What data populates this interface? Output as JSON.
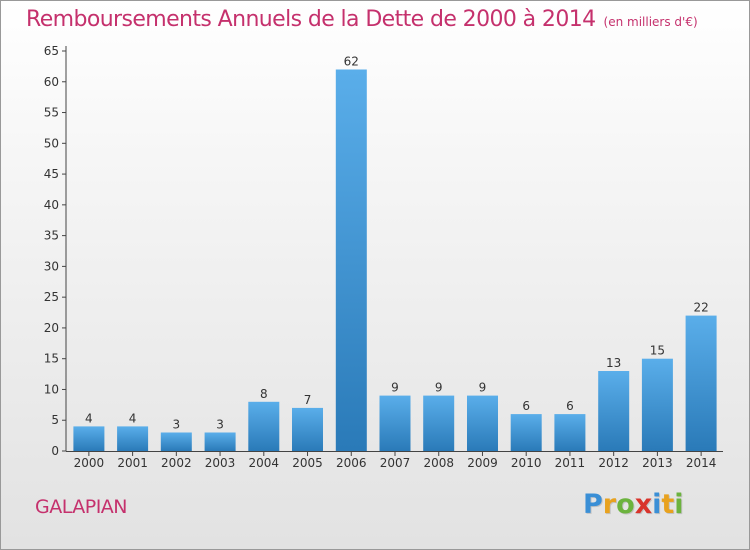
{
  "header": {
    "title": "Remboursements Annuels de la Dette de 2000 à 2014",
    "unit": "(en milliers d'€)"
  },
  "footer": {
    "commune": "GALAPIAN",
    "brand": "Proxiti",
    "brand_letters": [
      "P",
      "r",
      "o",
      "x",
      "i",
      "t",
      "i"
    ],
    "brand_colors": [
      "#3a8fd6",
      "#e8a21f",
      "#6cb33e",
      "#d9342b",
      "#3a8fd6",
      "#e8a21f",
      "#6cb33e"
    ]
  },
  "colors": {
    "title": "#c5316d",
    "bar_top": "#5aaeea",
    "bar_bottom": "#2a7ab8"
  },
  "chart_data": {
    "type": "bar",
    "title": "Remboursements Annuels de la Dette de 2000 à 2014",
    "subtitle": "(en milliers d'€)",
    "xlabel": "",
    "ylabel": "",
    "categories": [
      "2000",
      "2001",
      "2002",
      "2003",
      "2004",
      "2005",
      "2006",
      "2007",
      "2008",
      "2009",
      "2010",
      "2011",
      "2012",
      "2013",
      "2014"
    ],
    "values": [
      4,
      4,
      3,
      3,
      8,
      7,
      62,
      9,
      9,
      9,
      6,
      6,
      13,
      15,
      22
    ],
    "ylim": [
      0,
      65
    ],
    "yticks": [
      0,
      5,
      10,
      15,
      20,
      25,
      30,
      35,
      40,
      45,
      50,
      55,
      60,
      65
    ],
    "grid": false,
    "data_labels": true
  }
}
